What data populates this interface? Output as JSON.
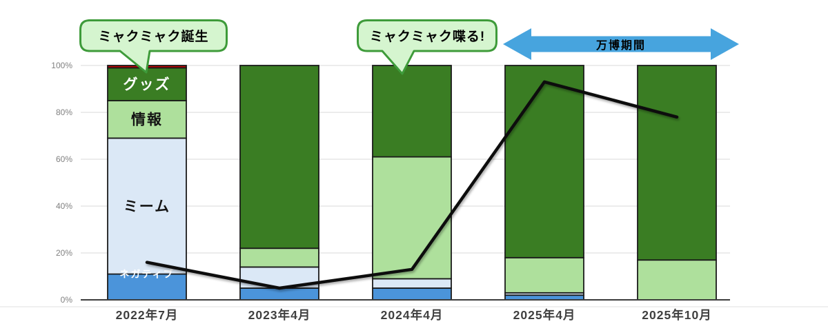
{
  "chart_data": {
    "type": "bar",
    "subtype": "100%-stacked-columns-with-line-overlay",
    "title": "",
    "categories": [
      "2022年7月",
      "2023年4月",
      "2024年4月",
      "2025年4月",
      "2025年10月"
    ],
    "series": [
      {
        "key": "negative",
        "name": "ネガティブ",
        "color": "#4b94da",
        "values": [
          11,
          5,
          5,
          2,
          0
        ],
        "label": "ネガティブ",
        "label_pct": 11,
        "label_color": "#ffffff",
        "label_size": 14
      },
      {
        "key": "meme",
        "name": "ミーム",
        "color": "#dbe8f6",
        "values": [
          58,
          9,
          4,
          1,
          0
        ],
        "label": "ミーム",
        "label_pct": 40,
        "label_color": "#141414",
        "label_size": 21
      },
      {
        "key": "info",
        "name": "情報",
        "color": "#aee09c",
        "values": [
          16,
          8,
          52,
          15,
          17
        ],
        "label": "情報",
        "label_pct": 77,
        "label_color": "#141414",
        "label_size": 21
      },
      {
        "key": "goods",
        "name": "グッズ",
        "color": "#3a7d23",
        "values": [
          14,
          78,
          39,
          82,
          83
        ],
        "label": "グッズ",
        "label_pct": 92,
        "label_color": "#ffffff",
        "label_size": 21
      },
      {
        "key": "red",
        "name": "",
        "color": "#c00000",
        "values": [
          1,
          0,
          0,
          0,
          0
        ]
      }
    ],
    "line": {
      "name": "",
      "color": "#0d0d0d",
      "values": [
        16,
        5,
        13,
        93,
        78
      ]
    },
    "y_ticks": [
      0,
      20,
      40,
      60,
      80,
      100
    ],
    "y_tick_suffix": "%",
    "ylim": [
      0,
      100
    ],
    "grid": true,
    "legend": "none",
    "annotations": [
      {
        "id": "birth",
        "type": "callout",
        "text": "ミャクミャク誕生",
        "fill": "#d5f5cf",
        "border": "#3e9b3a",
        "target": "2022年7月"
      },
      {
        "id": "talk",
        "type": "callout",
        "text": "ミャクミャク喋る!",
        "fill": "#d5f5cf",
        "border": "#3e9b3a",
        "target": "2024年4月"
      },
      {
        "id": "expo",
        "type": "double-arrow",
        "text": "万博期間",
        "fill": "#47a4de",
        "text_color": "#000000",
        "span": [
          "2025年4月",
          "2025年10月"
        ]
      }
    ]
  },
  "axis_style": {
    "grid_color": "#d9d9d9",
    "axis_line_color": "#3c3c3c",
    "bar_border_color": "#1a1a1a",
    "tick_label_color": "#808080",
    "category_label_color": "#3f3f3f",
    "baseline_shadow_color": "#ececec"
  }
}
